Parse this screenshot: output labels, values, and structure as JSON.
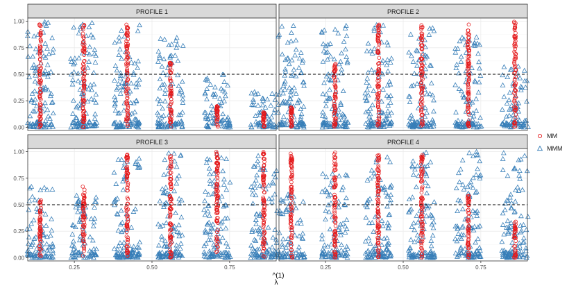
{
  "chart_data": {
    "type": "scatter",
    "facets": [
      "PROFILE 1",
      "PROFILE 2",
      "PROFILE 3",
      "PROFILE 4"
    ],
    "xlabel_top": "(1)",
    "xlabel_main": "λ",
    "xlabel_hat": "^",
    "xlim": [
      0.1,
      0.9
    ],
    "ylim": [
      -0.03,
      1.03
    ],
    "x_ticks": [
      0.25,
      0.5,
      0.75
    ],
    "x_tick_labels": [
      "0.25",
      "0.50",
      "0.75"
    ],
    "y_ticks": [
      0.0,
      0.25,
      0.5,
      0.75,
      1.0
    ],
    "y_tick_labels": [
      "0.00",
      "0.25",
      "0.50",
      "0.75",
      "1.00"
    ],
    "reference_line": 0.5,
    "lambda_positions": [
      0.14,
      0.28,
      0.42,
      0.56,
      0.71,
      0.86
    ],
    "legend": [
      {
        "name": "MM",
        "shape": "circle",
        "color": "#e41a1c"
      },
      {
        "name": "MMM",
        "shape": "triangle",
        "color": "#377eb8"
      }
    ],
    "series": [
      {
        "name": "MM",
        "color": "#e41a1c",
        "x_positions": [
          0.14,
          0.28,
          0.42,
          0.56,
          0.71,
          0.86
        ],
        "description_by_profile": [
          "vertical columns near 0..1",
          "columns",
          "columns",
          "columns"
        ]
      },
      {
        "name": "MMM",
        "color": "#377eb8",
        "x_positions": [
          0.14,
          0.28,
          0.42,
          0.56,
          0.71,
          0.86
        ]
      }
    ],
    "profiles": [
      {
        "name": "PROFILE 1",
        "mm": [
          {
            "x": 0.14,
            "lo": 0.0,
            "hi": 0.98
          },
          {
            "x": 0.28,
            "lo": 0.0,
            "hi": 0.98
          },
          {
            "x": 0.42,
            "lo": 0.0,
            "hi": 0.98
          },
          {
            "x": 0.56,
            "lo": 0.0,
            "hi": 0.62
          },
          {
            "x": 0.71,
            "lo": 0.0,
            "hi": 0.2
          },
          {
            "x": 0.86,
            "lo": 0.0,
            "hi": 0.15
          }
        ],
        "mmm": [
          {
            "x": 0.14,
            "lo": 0.0,
            "hi": 1.0
          },
          {
            "x": 0.28,
            "lo": 0.0,
            "hi": 1.0
          },
          {
            "x": 0.42,
            "lo": 0.0,
            "hi": 0.97
          },
          {
            "x": 0.56,
            "lo": 0.0,
            "hi": 0.85
          },
          {
            "x": 0.71,
            "lo": 0.0,
            "hi": 0.5
          },
          {
            "x": 0.86,
            "lo": 0.0,
            "hi": 0.35
          }
        ]
      },
      {
        "name": "PROFILE 2",
        "mm": [
          {
            "x": 0.14,
            "lo": 0.0,
            "hi": 0.2
          },
          {
            "x": 0.28,
            "lo": 0.0,
            "hi": 0.62
          },
          {
            "x": 0.42,
            "lo": 0.0,
            "hi": 0.98
          },
          {
            "x": 0.56,
            "lo": 0.0,
            "hi": 0.98
          },
          {
            "x": 0.71,
            "lo": 0.0,
            "hi": 0.98
          },
          {
            "x": 0.86,
            "lo": 0.0,
            "hi": 1.0
          }
        ],
        "mmm": [
          {
            "x": 0.14,
            "lo": 0.0,
            "hi": 1.0
          },
          {
            "x": 0.28,
            "lo": 0.0,
            "hi": 1.0
          },
          {
            "x": 0.42,
            "lo": 0.0,
            "hi": 1.0
          },
          {
            "x": 0.56,
            "lo": 0.0,
            "hi": 0.95
          },
          {
            "x": 0.71,
            "lo": 0.0,
            "hi": 0.85
          },
          {
            "x": 0.86,
            "lo": 0.0,
            "hi": 0.6
          }
        ]
      },
      {
        "name": "PROFILE 3",
        "mm": [
          {
            "x": 0.14,
            "lo": 0.0,
            "hi": 0.55
          },
          {
            "x": 0.28,
            "lo": 0.0,
            "hi": 0.68
          },
          {
            "x": 0.42,
            "lo": 0.0,
            "hi": 0.98
          },
          {
            "x": 0.56,
            "lo": 0.0,
            "hi": 0.98
          },
          {
            "x": 0.71,
            "lo": 0.0,
            "hi": 1.0
          },
          {
            "x": 0.86,
            "lo": 0.0,
            "hi": 1.0
          }
        ],
        "mmm": [
          {
            "x": 0.14,
            "lo": 0.0,
            "hi": 0.68
          },
          {
            "x": 0.28,
            "lo": 0.0,
            "hi": 0.6
          },
          {
            "x": 0.42,
            "lo": 0.0,
            "hi": 0.95
          },
          {
            "x": 0.56,
            "lo": 0.0,
            "hi": 1.0
          },
          {
            "x": 0.71,
            "lo": 0.0,
            "hi": 1.0
          },
          {
            "x": 0.86,
            "lo": 0.0,
            "hi": 1.0
          }
        ]
      },
      {
        "name": "PROFILE 4",
        "mm": [
          {
            "x": 0.14,
            "lo": 0.0,
            "hi": 1.0
          },
          {
            "x": 0.28,
            "lo": 0.0,
            "hi": 1.0
          },
          {
            "x": 0.42,
            "lo": 0.0,
            "hi": 1.0
          },
          {
            "x": 0.56,
            "lo": 0.0,
            "hi": 0.98
          },
          {
            "x": 0.71,
            "lo": 0.0,
            "hi": 0.6
          },
          {
            "x": 0.86,
            "lo": 0.0,
            "hi": 0.35
          }
        ],
        "mmm": [
          {
            "x": 0.14,
            "lo": 0.0,
            "hi": 0.6
          },
          {
            "x": 0.28,
            "lo": 0.0,
            "hi": 0.8
          },
          {
            "x": 0.42,
            "lo": 0.0,
            "hi": 0.95
          },
          {
            "x": 0.56,
            "lo": 0.0,
            "hi": 1.0
          },
          {
            "x": 0.71,
            "lo": 0.0,
            "hi": 1.0
          },
          {
            "x": 0.86,
            "lo": 0.0,
            "hi": 1.0
          }
        ]
      }
    ]
  }
}
